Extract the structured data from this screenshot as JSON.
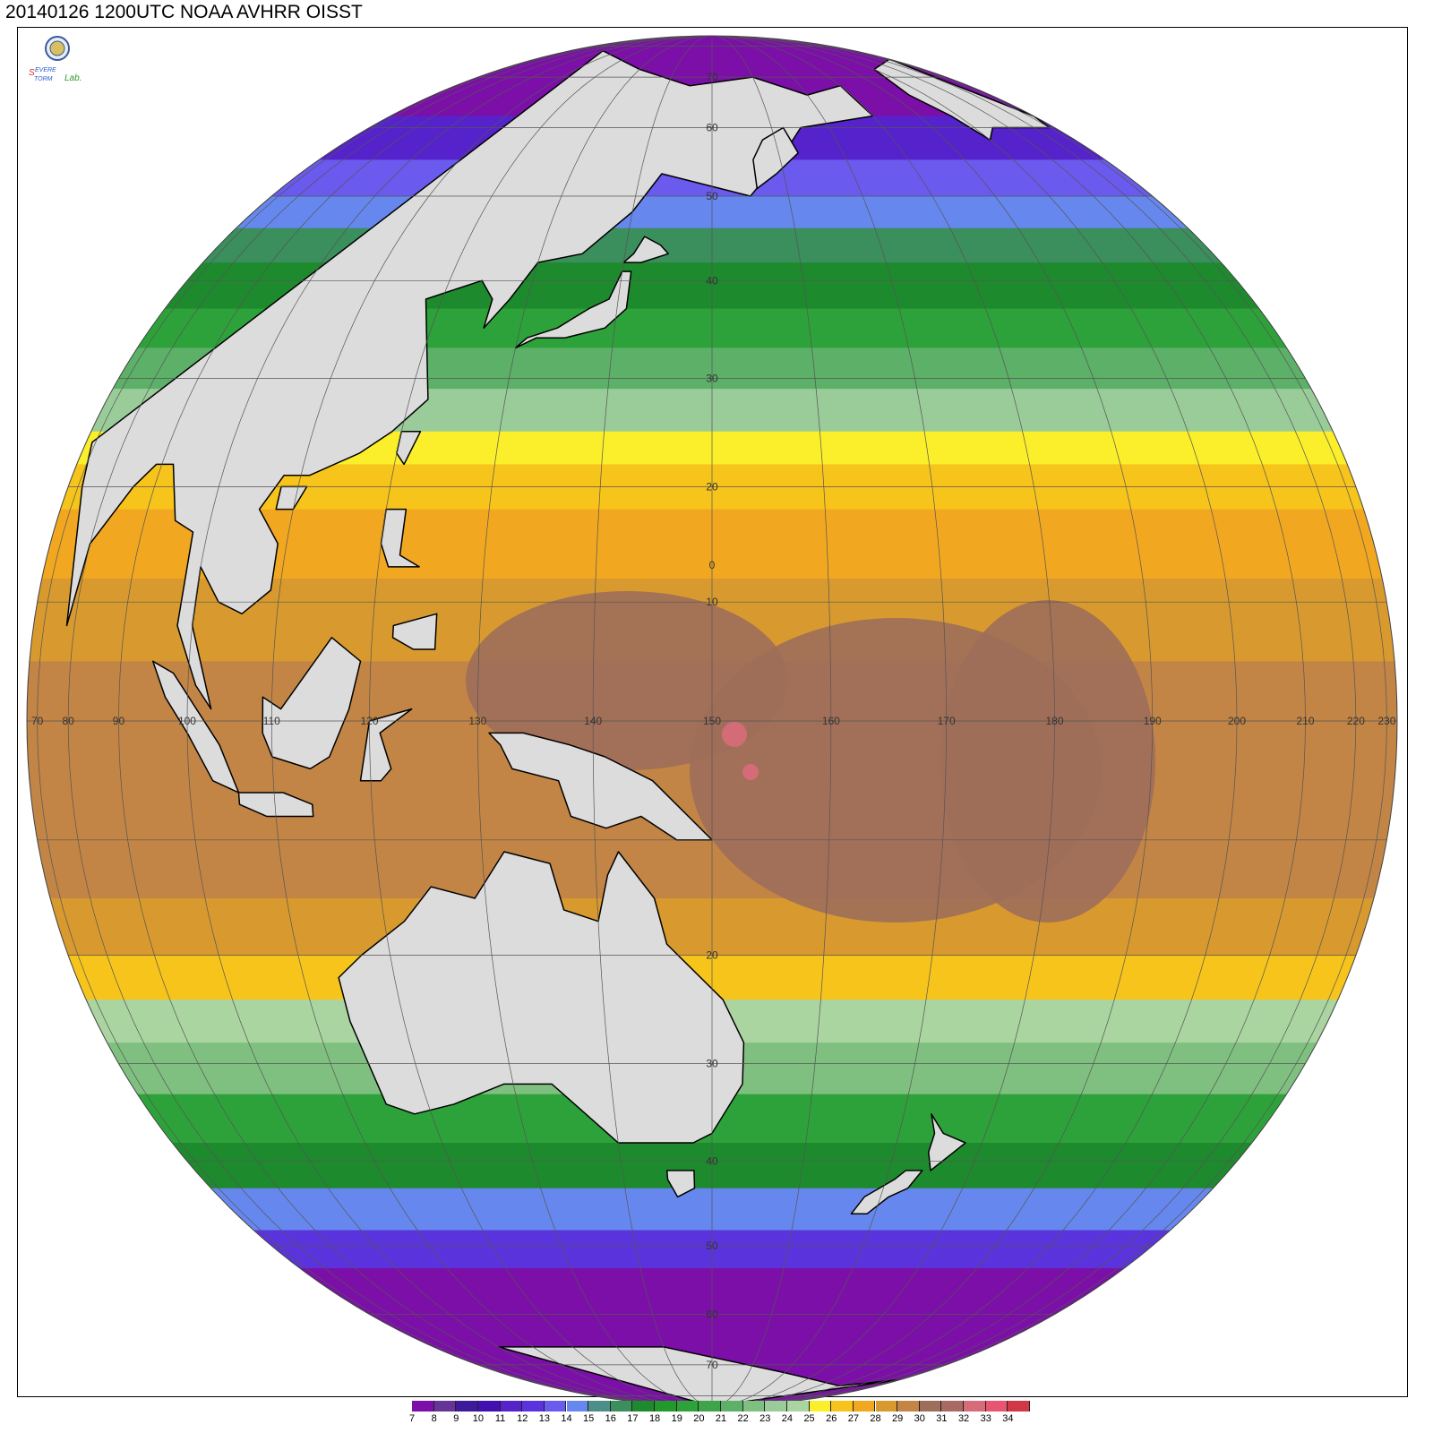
{
  "title": "20140126 1200UTC NOAA AVHRR OISST",
  "logo": {
    "name": "Severe Storm Lab. emblem",
    "text_line1": "Severe",
    "text_line2": "Storm",
    "text_line3": "Lab."
  },
  "projection": {
    "type": "orthographic",
    "center_lon": 150,
    "center_lat": 0
  },
  "graticule": {
    "longitude_labels": [
      "70",
      "80",
      "90",
      "100",
      "110",
      "120",
      "130",
      "140",
      "150",
      "160",
      "170",
      "180",
      "190",
      "200",
      "210",
      "220",
      "230"
    ],
    "latitude_labels_north": [
      "70",
      "60",
      "50",
      "40",
      "30",
      "20",
      "10"
    ],
    "latitude_labels_south": [
      "20",
      "30",
      "40",
      "50",
      "60",
      "70"
    ]
  },
  "colorbar": {
    "labels": [
      "7",
      "8",
      "9",
      "10",
      "11",
      "12",
      "13",
      "14",
      "15",
      "16",
      "17",
      "18",
      "19",
      "20",
      "21",
      "22",
      "23",
      "24",
      "25",
      "26",
      "27",
      "28",
      "29",
      "30",
      "31",
      "32",
      "33",
      "34"
    ],
    "colors": [
      "#7b0fa8",
      "#663399",
      "#3d1a99",
      "#4010b0",
      "#5522cc",
      "#5a33dd",
      "#6a5aee",
      "#6688ee",
      "#4c8f88",
      "#3a8f5c",
      "#1e8a2e",
      "#22992a",
      "#2ea23a",
      "#3da44a",
      "#5cb068",
      "#7fc080",
      "#99cc99",
      "#aad4a0",
      "#fbee2a",
      "#f7c41c",
      "#f1a820",
      "#d89a2e",
      "#c28545",
      "#9e6e5a",
      "#a86a62",
      "#d86b7a",
      "#e85570",
      "#d03848"
    ]
  },
  "colors": {
    "land": "#dcdcdc",
    "coast": "#000000",
    "grid": "#555555",
    "frame": "#000000"
  }
}
